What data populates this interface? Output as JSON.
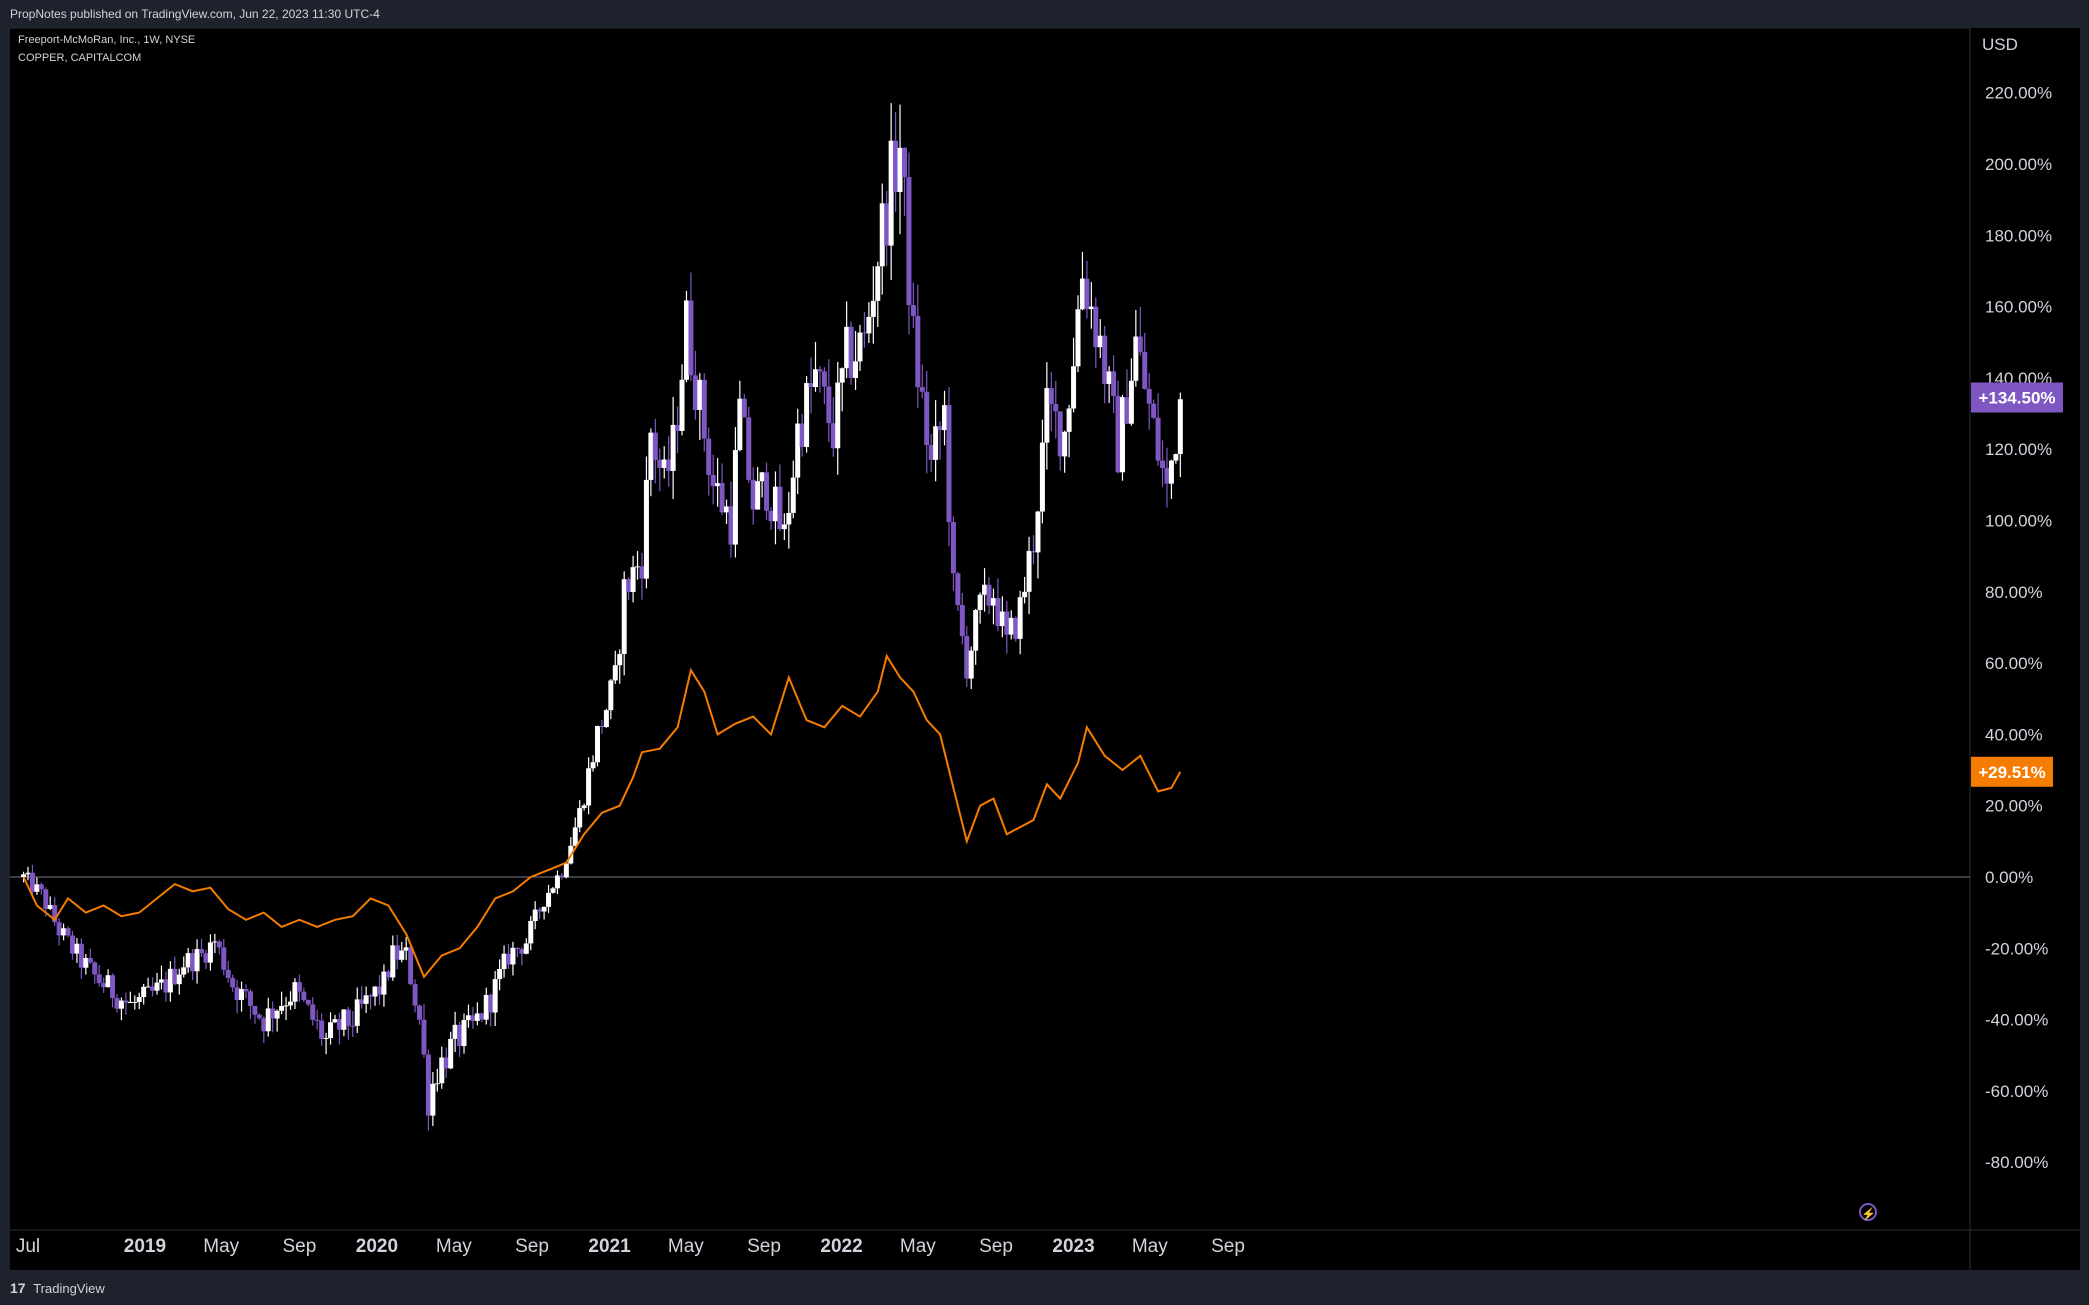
{
  "header": {
    "publish_text": "PropNotes published on TradingView.com, Jun 22, 2023 11:30 UTC-4"
  },
  "legend": {
    "line1": "Freeport-McMoRan, Inc., 1W, NYSE",
    "line2": "COPPER, CAPITALCOM"
  },
  "footer": {
    "brand": "TradingView",
    "logo_glyph": "17"
  },
  "colors": {
    "background": "#000000",
    "frame": "#1e222d",
    "candle_up": "#ffffff",
    "candle_down": "#7e57c2",
    "copper_line": "#f57c00",
    "zero_line": "#787b86",
    "fcx_badge": "#7e57c2",
    "copper_badge": "#f57c00"
  },
  "icons": {
    "flash": "lightning-icon"
  },
  "chart_data": {
    "type": "candlestick",
    "currency_label": "USD",
    "y_unit": "percent",
    "y_ticks": [
      220,
      200,
      180,
      160,
      140,
      120,
      100,
      80,
      60,
      40,
      20,
      0,
      -20,
      -40,
      -60,
      -80
    ],
    "y_tick_labels": [
      "220.00%",
      "200.00%",
      "180.00%",
      "160.00%",
      "140.00%",
      "120.00%",
      "100.00%",
      "80.00%",
      "60.00%",
      "40.00%",
      "20.00%",
      "0.00%",
      "-20.00%",
      "-40.00%",
      "-60.00%",
      "-80.00%"
    ],
    "x_ticks": [
      {
        "label": "Jul",
        "date": "2018-07-01",
        "bold": false
      },
      {
        "label": "2019",
        "date": "2019-01-01",
        "bold": true
      },
      {
        "label": "May",
        "date": "2019-05-01",
        "bold": false
      },
      {
        "label": "Sep",
        "date": "2019-09-01",
        "bold": false
      },
      {
        "label": "2020",
        "date": "2020-01-01",
        "bold": true
      },
      {
        "label": "May",
        "date": "2020-05-01",
        "bold": false
      },
      {
        "label": "Sep",
        "date": "2020-09-01",
        "bold": false
      },
      {
        "label": "2021",
        "date": "2021-01-01",
        "bold": true
      },
      {
        "label": "May",
        "date": "2021-05-01",
        "bold": false
      },
      {
        "label": "Sep",
        "date": "2021-09-01",
        "bold": false
      },
      {
        "label": "2022",
        "date": "2022-01-01",
        "bold": true
      },
      {
        "label": "May",
        "date": "2022-05-01",
        "bold": false
      },
      {
        "label": "Sep",
        "date": "2022-09-01",
        "bold": false
      },
      {
        "label": "2023",
        "date": "2023-01-01",
        "bold": true
      },
      {
        "label": "May",
        "date": "2023-05-01",
        "bold": false
      },
      {
        "label": "Sep",
        "date": "2023-09-01",
        "bold": false
      }
    ],
    "series": [
      {
        "name": "Freeport-McMoRan, Inc.",
        "kind": "candles",
        "last_value_label": "+134.50%",
        "close_path": [
          [
            "2018-06-24",
            0
          ],
          [
            "2018-07-22",
            -5
          ],
          [
            "2018-08-19",
            -15
          ],
          [
            "2018-09-16",
            -22
          ],
          [
            "2018-10-14",
            -28
          ],
          [
            "2018-11-11",
            -32
          ],
          [
            "2018-12-09",
            -36
          ],
          [
            "2019-01-06",
            -34
          ],
          [
            "2019-02-03",
            -30
          ],
          [
            "2019-03-03",
            -24
          ],
          [
            "2019-03-31",
            -22
          ],
          [
            "2019-04-21",
            -18
          ],
          [
            "2019-05-19",
            -30
          ],
          [
            "2019-06-16",
            -36
          ],
          [
            "2019-07-07",
            -40
          ],
          [
            "2019-07-28",
            -36
          ],
          [
            "2019-08-25",
            -32
          ],
          [
            "2019-09-22",
            -40
          ],
          [
            "2019-10-13",
            -46
          ],
          [
            "2019-11-03",
            -42
          ],
          [
            "2019-11-24",
            -40
          ],
          [
            "2019-12-22",
            -34
          ],
          [
            "2020-01-12",
            -30
          ],
          [
            "2020-01-26",
            -22
          ],
          [
            "2020-02-16",
            -22
          ],
          [
            "2020-03-08",
            -40
          ],
          [
            "2020-03-22",
            -62
          ],
          [
            "2020-04-05",
            -54
          ],
          [
            "2020-05-03",
            -46
          ],
          [
            "2020-05-31",
            -42
          ],
          [
            "2020-06-28",
            -34
          ],
          [
            "2020-07-26",
            -22
          ],
          [
            "2020-08-23",
            -18
          ],
          [
            "2020-09-20",
            -6
          ],
          [
            "2020-10-18",
            2
          ],
          [
            "2020-11-15",
            18
          ],
          [
            "2020-12-13",
            40
          ],
          [
            "2021-01-10",
            55
          ],
          [
            "2021-01-24",
            80
          ],
          [
            "2021-02-21",
            90
          ],
          [
            "2021-03-07",
            125
          ],
          [
            "2021-03-28",
            110
          ],
          [
            "2021-04-11",
            120
          ],
          [
            "2021-05-02",
            155
          ],
          [
            "2021-05-16",
            140
          ],
          [
            "2021-06-13",
            110
          ],
          [
            "2021-07-11",
            100
          ],
          [
            "2021-07-25",
            130
          ],
          [
            "2021-08-15",
            105
          ],
          [
            "2021-09-05",
            110
          ],
          [
            "2021-10-03",
            95
          ],
          [
            "2021-10-24",
            125
          ],
          [
            "2021-11-21",
            140
          ],
          [
            "2021-12-19",
            125
          ],
          [
            "2022-01-09",
            145
          ],
          [
            "2022-02-06",
            150
          ],
          [
            "2022-02-27",
            175
          ],
          [
            "2022-03-20",
            195
          ],
          [
            "2022-04-03",
            205
          ],
          [
            "2022-04-24",
            150
          ],
          [
            "2022-05-22",
            115
          ],
          [
            "2022-06-12",
            130
          ],
          [
            "2022-06-26",
            80
          ],
          [
            "2022-07-17",
            60
          ],
          [
            "2022-08-07",
            75
          ],
          [
            "2022-08-28",
            80
          ],
          [
            "2022-09-18",
            65
          ],
          [
            "2022-10-09",
            75
          ],
          [
            "2022-10-30",
            95
          ],
          [
            "2022-11-20",
            130
          ],
          [
            "2022-12-18",
            125
          ],
          [
            "2023-01-15",
            170
          ],
          [
            "2023-02-12",
            150
          ],
          [
            "2023-03-12",
            120
          ],
          [
            "2023-04-09",
            150
          ],
          [
            "2023-05-07",
            125
          ],
          [
            "2023-05-28",
            108
          ],
          [
            "2023-06-11",
            125
          ],
          [
            "2023-06-18",
            134.5
          ]
        ]
      },
      {
        "name": "COPPER",
        "kind": "line",
        "last_value_label": "+29.51%",
        "points": [
          [
            "2018-06-24",
            0
          ],
          [
            "2018-07-15",
            -8
          ],
          [
            "2018-08-12",
            -12
          ],
          [
            "2018-09-02",
            -6
          ],
          [
            "2018-09-30",
            -10
          ],
          [
            "2018-10-28",
            -8
          ],
          [
            "2018-11-25",
            -11
          ],
          [
            "2018-12-23",
            -10
          ],
          [
            "2019-01-20",
            -6
          ],
          [
            "2019-02-17",
            -2
          ],
          [
            "2019-03-17",
            -4
          ],
          [
            "2019-04-14",
            -3
          ],
          [
            "2019-05-12",
            -9
          ],
          [
            "2019-06-09",
            -12
          ],
          [
            "2019-07-07",
            -10
          ],
          [
            "2019-08-04",
            -14
          ],
          [
            "2019-09-01",
            -12
          ],
          [
            "2019-09-29",
            -14
          ],
          [
            "2019-10-27",
            -12
          ],
          [
            "2019-11-24",
            -11
          ],
          [
            "2019-12-22",
            -6
          ],
          [
            "2020-01-19",
            -8
          ],
          [
            "2020-02-16",
            -16
          ],
          [
            "2020-03-15",
            -28
          ],
          [
            "2020-04-12",
            -22
          ],
          [
            "2020-05-10",
            -20
          ],
          [
            "2020-06-07",
            -14
          ],
          [
            "2020-07-05",
            -6
          ],
          [
            "2020-08-02",
            -4
          ],
          [
            "2020-08-30",
            0
          ],
          [
            "2020-09-27",
            2
          ],
          [
            "2020-10-25",
            4
          ],
          [
            "2020-11-22",
            12
          ],
          [
            "2020-12-20",
            18
          ],
          [
            "2021-01-17",
            20
          ],
          [
            "2021-02-07",
            28
          ],
          [
            "2021-02-21",
            35
          ],
          [
            "2021-03-21",
            36
          ],
          [
            "2021-04-18",
            42
          ],
          [
            "2021-05-09",
            58
          ],
          [
            "2021-05-30",
            52
          ],
          [
            "2021-06-20",
            40
          ],
          [
            "2021-07-18",
            43
          ],
          [
            "2021-08-15",
            45
          ],
          [
            "2021-09-12",
            40
          ],
          [
            "2021-10-10",
            56
          ],
          [
            "2021-11-07",
            44
          ],
          [
            "2021-12-05",
            42
          ],
          [
            "2022-01-02",
            48
          ],
          [
            "2022-01-30",
            45
          ],
          [
            "2022-02-27",
            52
          ],
          [
            "2022-03-13",
            62
          ],
          [
            "2022-04-03",
            56
          ],
          [
            "2022-04-24",
            52
          ],
          [
            "2022-05-15",
            44
          ],
          [
            "2022-06-05",
            40
          ],
          [
            "2022-06-26",
            25
          ],
          [
            "2022-07-17",
            10
          ],
          [
            "2022-08-07",
            20
          ],
          [
            "2022-08-28",
            22
          ],
          [
            "2022-09-18",
            12
          ],
          [
            "2022-10-09",
            14
          ],
          [
            "2022-10-30",
            16
          ],
          [
            "2022-11-20",
            26
          ],
          [
            "2022-12-11",
            22
          ],
          [
            "2023-01-08",
            32
          ],
          [
            "2023-01-22",
            42
          ],
          [
            "2023-02-19",
            34
          ],
          [
            "2023-03-19",
            30
          ],
          [
            "2023-04-16",
            34
          ],
          [
            "2023-05-14",
            24
          ],
          [
            "2023-06-04",
            25
          ],
          [
            "2023-06-18",
            29.51
          ]
        ]
      }
    ],
    "reference_line": {
      "value": 0
    },
    "grid": false,
    "legend_position": "top-left"
  }
}
